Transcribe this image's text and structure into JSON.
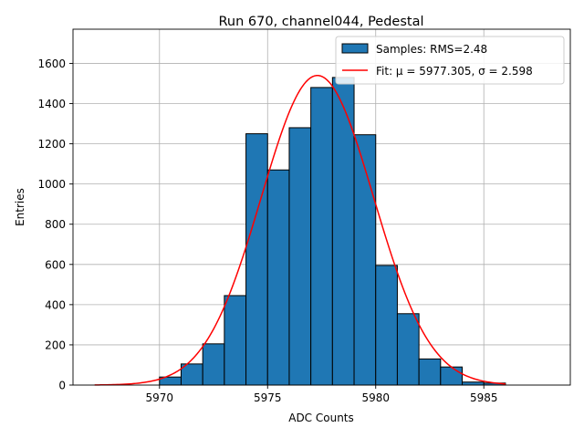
{
  "chart_data": {
    "type": "bar",
    "title": "Run 670, channel044, Pedestal",
    "xlabel": "ADC Counts",
    "ylabel": "Entries",
    "xlim": [
      5966.0,
      5989.0
    ],
    "ylim": [
      0,
      1770
    ],
    "xticks": [
      5970,
      5975,
      5980,
      5985
    ],
    "yticks": [
      0,
      200,
      400,
      600,
      800,
      1000,
      1200,
      1400,
      1600
    ],
    "grid": true,
    "legend_position": "top-right",
    "bin_edges": [
      5970,
      5971,
      5972,
      5973,
      5974,
      5975,
      5976,
      5977,
      5978,
      5979,
      5980,
      5981,
      5982,
      5983,
      5984,
      5985,
      5986
    ],
    "series": [
      {
        "name": "Samples: RMS=2.48",
        "kind": "histogram",
        "color": "#1f77b4",
        "values": [
          40,
          105,
          205,
          445,
          1250,
          1070,
          1280,
          1480,
          1530,
          1245,
          595,
          355,
          130,
          90,
          15,
          10
        ]
      },
      {
        "name": "Fit: μ = 5977.305, σ = 2.598",
        "kind": "gaussian-fit",
        "color": "#ff0000",
        "mu": 5977.305,
        "sigma": 2.598,
        "amplitude": 1540,
        "x_range": [
          5967,
          5986
        ]
      }
    ]
  }
}
